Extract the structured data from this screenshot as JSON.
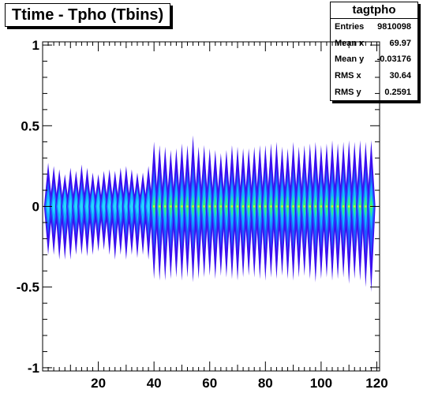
{
  "title": "Ttime - Tpho (Tbins)",
  "stats": {
    "name": "tagtpho",
    "rows": [
      {
        "label": "Entries",
        "value": "9810098"
      },
      {
        "label": "Mean x",
        "value": "69.97"
      },
      {
        "label": "Mean y",
        "value": "-0.03176"
      },
      {
        "label": "RMS x",
        "value": "30.64"
      },
      {
        "label": "RMS y",
        "value": "0.2591"
      }
    ]
  },
  "chart_data": {
    "type": "heatmap",
    "title": "Ttime - Tpho (Tbins)",
    "xlim": [
      0,
      121
    ],
    "ylim": [
      -1.02,
      1.02
    ],
    "xticks": [
      20,
      40,
      60,
      80,
      100,
      120
    ],
    "xtick_labels": [
      "20",
      "40",
      "60",
      "80",
      "100",
      "120"
    ],
    "yticks": [
      -1,
      -0.5,
      0,
      0.5,
      1
    ],
    "ytick_labels": [
      "-1",
      "-0.5",
      "0",
      "0.5",
      "1"
    ],
    "columns": [
      {
        "x": 2.0,
        "ymin": -0.3,
        "ymax": 0.27,
        "core": 0.05,
        "hot": false
      },
      {
        "x": 4.0,
        "ymin": -0.3,
        "ymax": 0.25,
        "core": 0.05,
        "hot": false
      },
      {
        "x": 6.0,
        "ymin": -0.33,
        "ymax": 0.23,
        "core": 0.05,
        "hot": false
      },
      {
        "x": 8.0,
        "ymin": -0.33,
        "ymax": 0.2,
        "core": 0.05,
        "hot": false
      },
      {
        "x": 10.0,
        "ymin": -0.33,
        "ymax": 0.24,
        "core": 0.05,
        "hot": false
      },
      {
        "x": 12.0,
        "ymin": -0.3,
        "ymax": 0.22,
        "core": 0.05,
        "hot": false
      },
      {
        "x": 14.0,
        "ymin": -0.3,
        "ymax": 0.26,
        "core": 0.05,
        "hot": false
      },
      {
        "x": 16.0,
        "ymin": -0.31,
        "ymax": 0.24,
        "core": 0.05,
        "hot": false
      },
      {
        "x": 18.0,
        "ymin": -0.3,
        "ymax": 0.21,
        "core": 0.05,
        "hot": false
      },
      {
        "x": 20.0,
        "ymin": -0.28,
        "ymax": 0.2,
        "core": 0.05,
        "hot": false
      },
      {
        "x": 22.0,
        "ymin": -0.27,
        "ymax": 0.22,
        "core": 0.05,
        "hot": false
      },
      {
        "x": 24.0,
        "ymin": -0.3,
        "ymax": 0.23,
        "core": 0.05,
        "hot": false
      },
      {
        "x": 26.0,
        "ymin": -0.33,
        "ymax": 0.22,
        "core": 0.05,
        "hot": false
      },
      {
        "x": 28.0,
        "ymin": -0.3,
        "ymax": 0.24,
        "core": 0.05,
        "hot": false
      },
      {
        "x": 30.0,
        "ymin": -0.33,
        "ymax": 0.25,
        "core": 0.05,
        "hot": false
      },
      {
        "x": 32.0,
        "ymin": -0.3,
        "ymax": 0.23,
        "core": 0.05,
        "hot": false
      },
      {
        "x": 34.0,
        "ymin": -0.32,
        "ymax": 0.21,
        "core": 0.05,
        "hot": false
      },
      {
        "x": 36.0,
        "ymin": -0.3,
        "ymax": 0.21,
        "core": 0.05,
        "hot": false
      },
      {
        "x": 38.0,
        "ymin": -0.33,
        "ymax": 0.25,
        "core": 0.05,
        "hot": false
      },
      {
        "x": 40.0,
        "ymin": -0.45,
        "ymax": 0.4,
        "core": 0.07,
        "hot": true
      },
      {
        "x": 42.0,
        "ymin": -0.46,
        "ymax": 0.38,
        "core": 0.07,
        "hot": true
      },
      {
        "x": 44.0,
        "ymin": -0.46,
        "ymax": 0.37,
        "core": 0.07,
        "hot": true
      },
      {
        "x": 46.0,
        "ymin": -0.45,
        "ymax": 0.35,
        "core": 0.07,
        "hot": true
      },
      {
        "x": 48.0,
        "ymin": -0.44,
        "ymax": 0.36,
        "core": 0.07,
        "hot": true
      },
      {
        "x": 50.0,
        "ymin": -0.46,
        "ymax": 0.39,
        "core": 0.07,
        "hot": true
      },
      {
        "x": 52.0,
        "ymin": -0.44,
        "ymax": 0.38,
        "core": 0.07,
        "hot": true
      },
      {
        "x": 54.0,
        "ymin": -0.47,
        "ymax": 0.44,
        "core": 0.07,
        "hot": true
      },
      {
        "x": 56.0,
        "ymin": -0.45,
        "ymax": 0.37,
        "core": 0.07,
        "hot": true
      },
      {
        "x": 58.0,
        "ymin": -0.44,
        "ymax": 0.38,
        "core": 0.07,
        "hot": true
      },
      {
        "x": 60.0,
        "ymin": -0.43,
        "ymax": 0.36,
        "core": 0.07,
        "hot": true
      },
      {
        "x": 62.0,
        "ymin": -0.45,
        "ymax": 0.35,
        "core": 0.07,
        "hot": true
      },
      {
        "x": 64.0,
        "ymin": -0.43,
        "ymax": 0.33,
        "core": 0.07,
        "hot": true
      },
      {
        "x": 66.0,
        "ymin": -0.44,
        "ymax": 0.35,
        "core": 0.07,
        "hot": true
      },
      {
        "x": 68.0,
        "ymin": -0.45,
        "ymax": 0.38,
        "core": 0.07,
        "hot": true
      },
      {
        "x": 70.0,
        "ymin": -0.46,
        "ymax": 0.37,
        "core": 0.07,
        "hot": true
      },
      {
        "x": 72.0,
        "ymin": -0.44,
        "ymax": 0.36,
        "core": 0.07,
        "hot": true
      },
      {
        "x": 74.0,
        "ymin": -0.43,
        "ymax": 0.36,
        "core": 0.07,
        "hot": true
      },
      {
        "x": 76.0,
        "ymin": -0.44,
        "ymax": 0.37,
        "core": 0.07,
        "hot": true
      },
      {
        "x": 78.0,
        "ymin": -0.45,
        "ymax": 0.38,
        "core": 0.07,
        "hot": true
      },
      {
        "x": 80.0,
        "ymin": -0.46,
        "ymax": 0.38,
        "core": 0.07,
        "hot": true
      },
      {
        "x": 82.0,
        "ymin": -0.44,
        "ymax": 0.39,
        "core": 0.07,
        "hot": true
      },
      {
        "x": 84.0,
        "ymin": -0.45,
        "ymax": 0.4,
        "core": 0.07,
        "hot": true
      },
      {
        "x": 86.0,
        "ymin": -0.43,
        "ymax": 0.37,
        "core": 0.07,
        "hot": true
      },
      {
        "x": 88.0,
        "ymin": -0.45,
        "ymax": 0.36,
        "core": 0.07,
        "hot": true
      },
      {
        "x": 90.0,
        "ymin": -0.46,
        "ymax": 0.4,
        "core": 0.07,
        "hot": true
      },
      {
        "x": 92.0,
        "ymin": -0.44,
        "ymax": 0.37,
        "core": 0.07,
        "hot": true
      },
      {
        "x": 94.0,
        "ymin": -0.43,
        "ymax": 0.38,
        "core": 0.07,
        "hot": true
      },
      {
        "x": 96.0,
        "ymin": -0.45,
        "ymax": 0.39,
        "core": 0.07,
        "hot": true
      },
      {
        "x": 98.0,
        "ymin": -0.47,
        "ymax": 0.4,
        "core": 0.07,
        "hot": true
      },
      {
        "x": 100.0,
        "ymin": -0.45,
        "ymax": 0.38,
        "core": 0.07,
        "hot": true
      },
      {
        "x": 102.0,
        "ymin": -0.44,
        "ymax": 0.39,
        "core": 0.07,
        "hot": true
      },
      {
        "x": 104.0,
        "ymin": -0.46,
        "ymax": 0.41,
        "core": 0.07,
        "hot": true
      },
      {
        "x": 106.0,
        "ymin": -0.45,
        "ymax": 0.39,
        "core": 0.07,
        "hot": true
      },
      {
        "x": 108.0,
        "ymin": -0.44,
        "ymax": 0.4,
        "core": 0.07,
        "hot": true
      },
      {
        "x": 110.0,
        "ymin": -0.48,
        "ymax": 0.41,
        "core": 0.07,
        "hot": true
      },
      {
        "x": 112.0,
        "ymin": -0.45,
        "ymax": 0.4,
        "core": 0.07,
        "hot": true
      },
      {
        "x": 114.0,
        "ymin": -0.46,
        "ymax": 0.41,
        "core": 0.07,
        "hot": true
      },
      {
        "x": 116.0,
        "ymin": -0.5,
        "ymax": 0.4,
        "core": 0.07,
        "hot": true
      },
      {
        "x": 118.0,
        "ymin": -0.53,
        "ymax": 0.41,
        "core": 0.07,
        "hot": true
      }
    ],
    "colors": {
      "outer": "#3a0ff0",
      "mid": "#1f5cff",
      "inner": "#14b8ff",
      "hot": "#2ef08a",
      "hot_center": "#d8f030"
    }
  }
}
